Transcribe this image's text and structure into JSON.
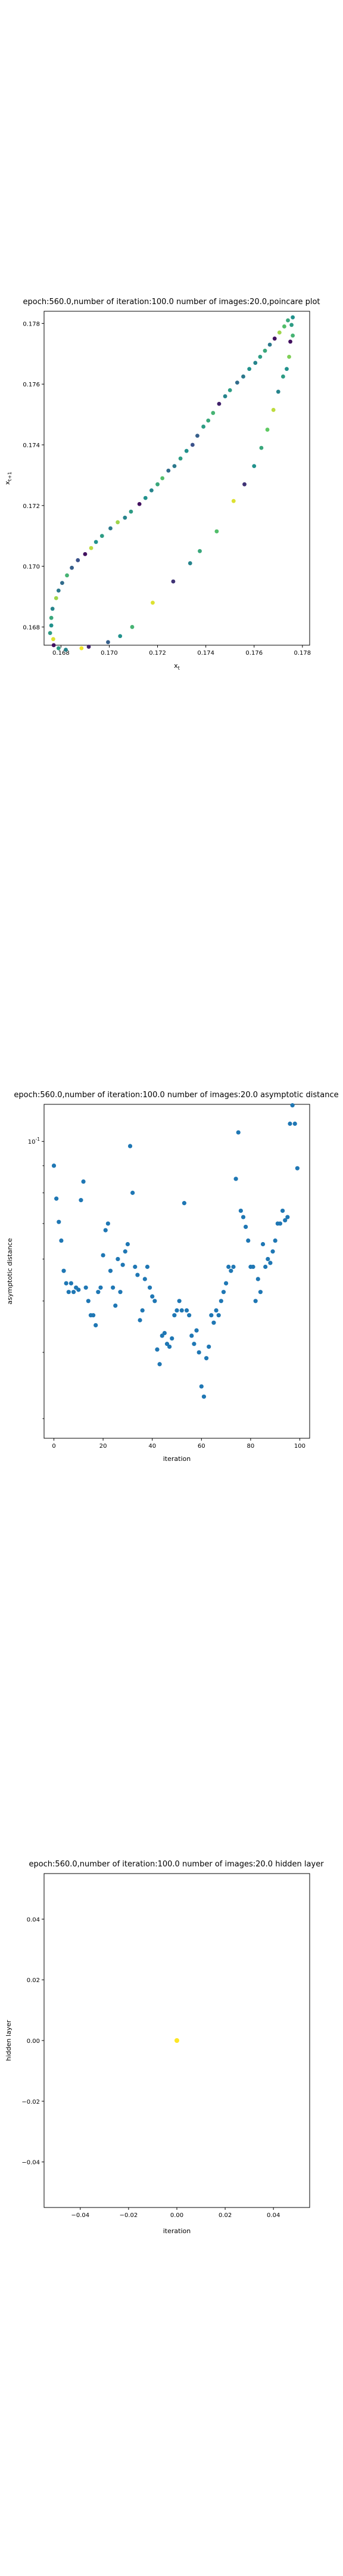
{
  "chart_data": [
    {
      "type": "scatter",
      "title": "epoch:560.0,number of iteration:100.0 number of images:20.0,poincare plot",
      "xlabel": "x_t",
      "ylabel": "x_{t+1}",
      "xlim": [
        0.1673,
        0.1783
      ],
      "ylim": [
        0.1674,
        0.1784
      ],
      "xticks": [
        0.168,
        0.17,
        0.172,
        0.174,
        0.176,
        0.178
      ],
      "xtick_labels": [
        "0.168",
        "0.170",
        "0.172",
        "0.174",
        "0.176",
        "0.178"
      ],
      "yticks": [
        0.168,
        0.17,
        0.172,
        0.174,
        0.176,
        0.178
      ],
      "ytick_labels": [
        "0.168",
        "0.170",
        "0.172",
        "0.174",
        "0.176",
        "0.178"
      ],
      "grid": false,
      "colormap": "viridis",
      "points": [
        {
          "x": 0.16755,
          "y": 0.1678,
          "c": 0.55
        },
        {
          "x": 0.1676,
          "y": 0.16805,
          "c": 0.5
        },
        {
          "x": 0.1676,
          "y": 0.1683,
          "c": 0.6
        },
        {
          "x": 0.16765,
          "y": 0.1686,
          "c": 0.45
        },
        {
          "x": 0.16768,
          "y": 0.1676,
          "c": 0.95
        },
        {
          "x": 0.1677,
          "y": 0.1674,
          "c": 0.05
        },
        {
          "x": 0.1678,
          "y": 0.16895,
          "c": 0.85
        },
        {
          "x": 0.1679,
          "y": 0.1692,
          "c": 0.4
        },
        {
          "x": 0.1679,
          "y": 0.1673,
          "c": 0.55
        },
        {
          "x": 0.16805,
          "y": 0.16945,
          "c": 0.35
        },
        {
          "x": 0.1682,
          "y": 0.16725,
          "c": 0.45
        },
        {
          "x": 0.16825,
          "y": 0.1697,
          "c": 0.65
        },
        {
          "x": 0.16845,
          "y": 0.16995,
          "c": 0.3
        },
        {
          "x": 0.1687,
          "y": 0.1702,
          "c": 0.25
        },
        {
          "x": 0.16885,
          "y": 0.1673,
          "c": 0.98
        },
        {
          "x": 0.169,
          "y": 0.1704,
          "c": 0.05
        },
        {
          "x": 0.16915,
          "y": 0.16735,
          "c": 0.1
        },
        {
          "x": 0.16925,
          "y": 0.1706,
          "c": 0.9
        },
        {
          "x": 0.16945,
          "y": 0.1708,
          "c": 0.5
        },
        {
          "x": 0.1697,
          "y": 0.171,
          "c": 0.55
        },
        {
          "x": 0.16995,
          "y": 0.1675,
          "c": 0.3
        },
        {
          "x": 0.17005,
          "y": 0.17125,
          "c": 0.4
        },
        {
          "x": 0.17035,
          "y": 0.17145,
          "c": 0.85
        },
        {
          "x": 0.17045,
          "y": 0.1677,
          "c": 0.5
        },
        {
          "x": 0.17065,
          "y": 0.1716,
          "c": 0.45
        },
        {
          "x": 0.1709,
          "y": 0.1718,
          "c": 0.55
        },
        {
          "x": 0.17095,
          "y": 0.168,
          "c": 0.65
        },
        {
          "x": 0.17125,
          "y": 0.17205,
          "c": 0.05
        },
        {
          "x": 0.1715,
          "y": 0.17225,
          "c": 0.5
        },
        {
          "x": 0.17175,
          "y": 0.1725,
          "c": 0.45
        },
        {
          "x": 0.1718,
          "y": 0.1688,
          "c": 0.95
        },
        {
          "x": 0.172,
          "y": 0.1727,
          "c": 0.6
        },
        {
          "x": 0.1722,
          "y": 0.1729,
          "c": 0.7
        },
        {
          "x": 0.17245,
          "y": 0.17315,
          "c": 0.35
        },
        {
          "x": 0.17265,
          "y": 0.1695,
          "c": 0.15
        },
        {
          "x": 0.1727,
          "y": 0.1733,
          "c": 0.4
        },
        {
          "x": 0.17295,
          "y": 0.17355,
          "c": 0.55
        },
        {
          "x": 0.1732,
          "y": 0.1738,
          "c": 0.5
        },
        {
          "x": 0.17335,
          "y": 0.1701,
          "c": 0.45
        },
        {
          "x": 0.17345,
          "y": 0.174,
          "c": 0.25
        },
        {
          "x": 0.17365,
          "y": 0.1743,
          "c": 0.3
        },
        {
          "x": 0.17375,
          "y": 0.1705,
          "c": 0.6
        },
        {
          "x": 0.1739,
          "y": 0.1746,
          "c": 0.55
        },
        {
          "x": 0.1741,
          "y": 0.1748,
          "c": 0.6
        },
        {
          "x": 0.1743,
          "y": 0.17505,
          "c": 0.65
        },
        {
          "x": 0.17445,
          "y": 0.17115,
          "c": 0.7
        },
        {
          "x": 0.17455,
          "y": 0.17535,
          "c": 0.1
        },
        {
          "x": 0.1748,
          "y": 0.1756,
          "c": 0.45
        },
        {
          "x": 0.175,
          "y": 0.1758,
          "c": 0.55
        },
        {
          "x": 0.17515,
          "y": 0.17215,
          "c": 0.95
        },
        {
          "x": 0.1753,
          "y": 0.17605,
          "c": 0.35
        },
        {
          "x": 0.17555,
          "y": 0.17625,
          "c": 0.4
        },
        {
          "x": 0.1756,
          "y": 0.1727,
          "c": 0.15
        },
        {
          "x": 0.1758,
          "y": 0.1765,
          "c": 0.5
        },
        {
          "x": 0.176,
          "y": 0.1733,
          "c": 0.5
        },
        {
          "x": 0.17605,
          "y": 0.1767,
          "c": 0.45
        },
        {
          "x": 0.17625,
          "y": 0.1769,
          "c": 0.55
        },
        {
          "x": 0.1763,
          "y": 0.1739,
          "c": 0.6
        },
        {
          "x": 0.17645,
          "y": 0.1771,
          "c": 0.6
        },
        {
          "x": 0.17655,
          "y": 0.1745,
          "c": 0.75
        },
        {
          "x": 0.17665,
          "y": 0.1773,
          "c": 0.4
        },
        {
          "x": 0.1768,
          "y": 0.17515,
          "c": 0.9
        },
        {
          "x": 0.17685,
          "y": 0.1775,
          "c": 0.05
        },
        {
          "x": 0.177,
          "y": 0.17575,
          "c": 0.45
        },
        {
          "x": 0.17705,
          "y": 0.1777,
          "c": 0.85
        },
        {
          "x": 0.1772,
          "y": 0.17625,
          "c": 0.55
        },
        {
          "x": 0.17725,
          "y": 0.1779,
          "c": 0.7
        },
        {
          "x": 0.17735,
          "y": 0.1765,
          "c": 0.5
        },
        {
          "x": 0.1774,
          "y": 0.1781,
          "c": 0.6
        },
        {
          "x": 0.17745,
          "y": 0.1769,
          "c": 0.8
        },
        {
          "x": 0.1775,
          "y": 0.1774,
          "c": 0.05
        },
        {
          "x": 0.17755,
          "y": 0.17795,
          "c": 0.55
        },
        {
          "x": 0.1776,
          "y": 0.1776,
          "c": 0.65
        },
        {
          "x": 0.1776,
          "y": 0.1782,
          "c": 0.5
        }
      ]
    },
    {
      "type": "scatter",
      "title": "epoch:560.0,number of iteration:100.0  number of images:20.0 asymptotic distance",
      "xlabel": "iteration",
      "ylabel": "asymptotic distance",
      "yscale": "log",
      "xlim": [
        -4,
        104
      ],
      "ylim_log10": [
        -1.56,
        -0.93
      ],
      "xticks": [
        0,
        20,
        40,
        60,
        80,
        100
      ],
      "xtick_labels": [
        "0",
        "20",
        "40",
        "60",
        "80",
        "100"
      ],
      "yticks": [
        0.1
      ],
      "ytick_labels": [
        "10^{-1}"
      ],
      "grid": false,
      "marker_color": "#1f77b4",
      "x": [
        0,
        1,
        2,
        3,
        4,
        5,
        6,
        7,
        8,
        9,
        10,
        11,
        12,
        13,
        14,
        15,
        16,
        17,
        18,
        19,
        20,
        21,
        22,
        23,
        24,
        25,
        26,
        27,
        28,
        29,
        30,
        31,
        32,
        33,
        34,
        35,
        36,
        37,
        38,
        39,
        40,
        41,
        42,
        43,
        44,
        45,
        46,
        47,
        48,
        49,
        50,
        51,
        52,
        53,
        54,
        55,
        56,
        57,
        58,
        59,
        60,
        61,
        62,
        63,
        64,
        65,
        66,
        67,
        68,
        69,
        70,
        71,
        72,
        73,
        74,
        75,
        76,
        77,
        78,
        79,
        80,
        81,
        82,
        83,
        84,
        85,
        86,
        87,
        88,
        89,
        90,
        91,
        92,
        93,
        94,
        95,
        96,
        97,
        98,
        99
      ],
      "y": [
        0.09,
        0.078,
        0.0705,
        0.065,
        0.057,
        0.054,
        0.052,
        0.054,
        0.052,
        0.053,
        0.0525,
        0.0775,
        0.084,
        0.053,
        0.05,
        0.047,
        0.047,
        0.045,
        0.052,
        0.053,
        0.061,
        0.068,
        0.07,
        0.057,
        0.053,
        0.049,
        0.06,
        0.052,
        0.0585,
        0.062,
        0.064,
        0.098,
        0.08,
        0.058,
        0.056,
        0.046,
        0.048,
        0.055,
        0.058,
        0.053,
        0.051,
        0.05,
        0.0405,
        0.038,
        0.043,
        0.0435,
        0.0415,
        0.041,
        0.0425,
        0.047,
        0.048,
        0.05,
        0.048,
        0.0765,
        0.048,
        0.047,
        0.043,
        0.0415,
        0.044,
        0.04,
        0.0345,
        0.033,
        0.039,
        0.041,
        0.047,
        0.0455,
        0.048,
        0.047,
        0.05,
        0.052,
        0.054,
        0.058,
        0.057,
        0.058,
        0.085,
        0.104,
        0.074,
        0.072,
        0.069,
        0.065,
        0.058,
        0.058,
        0.05,
        0.055,
        0.052,
        0.064,
        0.058,
        0.06,
        0.059,
        0.062,
        0.065,
        0.07,
        0.07,
        0.074,
        0.071,
        0.072,
        0.108,
        0.117,
        0.108,
        0.089
      ]
    },
    {
      "type": "scatter",
      "title": "epoch:560.0,number of iteration:100.0  number of images:20.0 hidden layer",
      "xlabel": "iteration",
      "ylabel": "hidden layer",
      "xlim": [
        -0.055,
        0.055
      ],
      "ylim": [
        -0.055,
        0.055
      ],
      "xticks": [
        -0.04,
        -0.02,
        0.0,
        0.02,
        0.04
      ],
      "xtick_labels": [
        "−0.04",
        "−0.02",
        "0.00",
        "0.02",
        "0.04"
      ],
      "yticks": [
        -0.04,
        -0.02,
        0.0,
        0.02,
        0.04
      ],
      "ytick_labels": [
        "−0.04",
        "−0.02",
        "0.00",
        "0.02",
        "0.04"
      ],
      "grid": false,
      "points": [
        {
          "x": 0.0,
          "y": 0.0,
          "color": "#fde725"
        }
      ]
    }
  ]
}
